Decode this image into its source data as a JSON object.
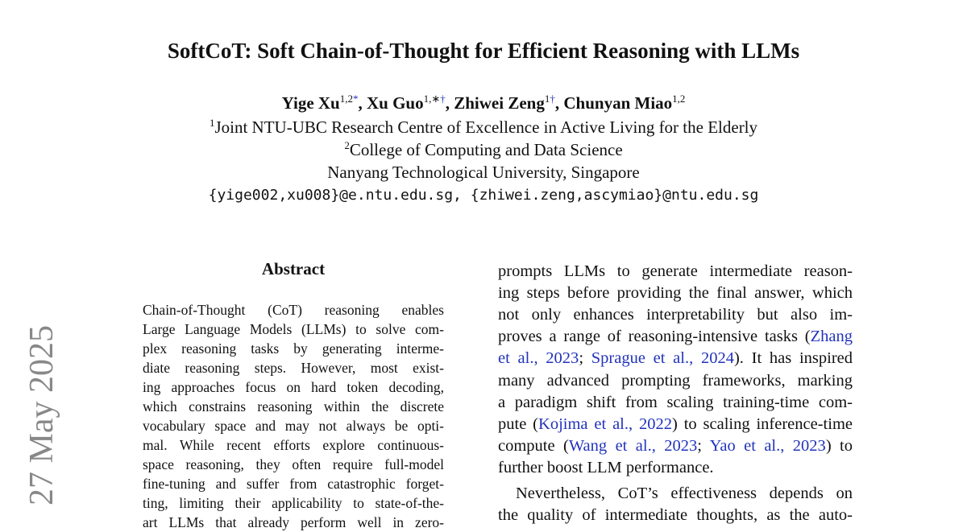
{
  "side_stamp": "27 May 2025",
  "title": "SoftCoT: Soft Chain-of-Thought for Efficient Reasoning with LLMs",
  "authors": [
    {
      "name": "Yige Xu",
      "sup": "1,2",
      "mark": "*"
    },
    {
      "name": "Xu Guo",
      "sup": "1,∗",
      "mark": "†"
    },
    {
      "name": "Zhiwei Zeng",
      "sup": "1",
      "mark": "†"
    },
    {
      "name": "Chunyan Miao",
      "sup": "1,2",
      "mark": ""
    }
  ],
  "affiliations": [
    {
      "sup": "1",
      "text": "Joint NTU-UBC Research Centre of Excellence in Active Living for the Elderly"
    },
    {
      "sup": "2",
      "text": "College of Computing and Data Science"
    },
    {
      "sup": "",
      "text": "Nanyang Technological University, Singapore"
    }
  ],
  "emails": "{yige002,xu008}@e.ntu.edu.sg, {zhiwei.zeng,ascymiao}@ntu.edu.sg",
  "abstract_heading": "Abstract",
  "abstract_lines": [
    "Chain-of-Thought (CoT) reasoning enables",
    "Large Language Models (LLMs) to solve com-",
    "plex reasoning tasks by generating interme-",
    "diate reasoning steps.  However, most exist-",
    "ing approaches focus on hard token decoding,",
    "which constrains reasoning within the discrete",
    "vocabulary space and may not always be opti-",
    "mal. While recent efforts explore continuous-",
    "space reasoning, they often require full-model",
    "fine-tuning and suffer from catastrophic forget-",
    "ting, limiting their applicability to state-of-the-",
    "art LLMs that already perform well in zero-"
  ],
  "body_lines": [
    [
      {
        "t": "prompts LLMs to generate intermediate reason-"
      }
    ],
    [
      {
        "t": "ing steps before providing the final answer, which"
      }
    ],
    [
      {
        "t": "not only enhances interpretability but also im-"
      }
    ],
    [
      {
        "t": "proves a range of reasoning-intensive tasks ("
      },
      {
        "t": "Zhang",
        "link": true
      }
    ],
    [
      {
        "t": "et al., 2023",
        "link": true
      },
      {
        "t": "; "
      },
      {
        "t": "Sprague et al., 2024",
        "link": true
      },
      {
        "t": "). It has inspired"
      }
    ],
    [
      {
        "t": "many advanced prompting frameworks, marking"
      }
    ],
    [
      {
        "t": "a paradigm shift from scaling training-time com-"
      }
    ],
    [
      {
        "t": "pute ("
      },
      {
        "t": "Kojima et al., 2022",
        "link": true
      },
      {
        "t": ") to scaling inference-time"
      }
    ],
    [
      {
        "t": "compute ("
      },
      {
        "t": "Wang et al., 2023",
        "link": true
      },
      {
        "t": "; "
      },
      {
        "t": "Yao et al., 2023",
        "link": true
      },
      {
        "t": ") to"
      }
    ],
    [
      {
        "t": "further boost LLM performance.",
        "last": true
      }
    ],
    [
      {
        "t": "    Nevertheless, CoT’s effectiveness depends on"
      }
    ],
    [
      {
        "t": "the quality of intermediate thoughts, as the auto-"
      }
    ]
  ],
  "colors": {
    "link": "#2233bb",
    "stamp": "#888888"
  }
}
